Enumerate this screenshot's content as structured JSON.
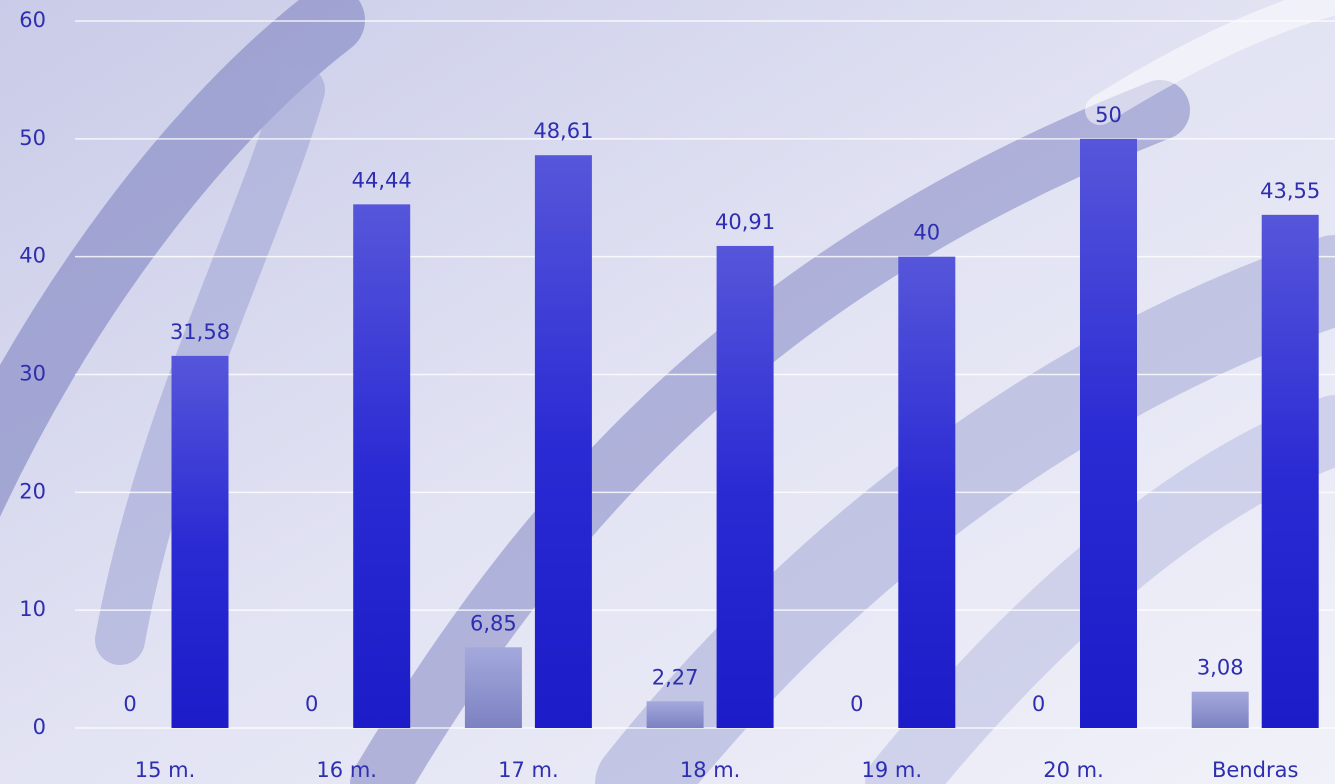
{
  "chart_data": {
    "type": "bar",
    "categories": [
      "15 m.",
      "16 m.",
      "17 m.",
      "18 m.",
      "19 m.",
      "20 m.",
      "Bendras"
    ],
    "series": [
      {
        "color": "#8a90cc",
        "values": [
          0,
          0,
          6.85,
          2.27,
          0,
          0,
          3.08
        ],
        "value_labels": [
          "0",
          "0",
          "6,85",
          "2,27",
          "0",
          "0",
          "3,08"
        ]
      },
      {
        "color": "#2a2ad0",
        "values": [
          31.58,
          44.44,
          48.61,
          40.91,
          40,
          50,
          43.55
        ],
        "value_labels": [
          "31,58",
          "44,44",
          "48,61",
          "40,91",
          "40",
          "50",
          "43,55"
        ]
      }
    ],
    "ylim": [
      0,
      60
    ],
    "yticks": [
      0,
      10,
      20,
      30,
      40,
      50,
      60
    ],
    "grid": true
  }
}
